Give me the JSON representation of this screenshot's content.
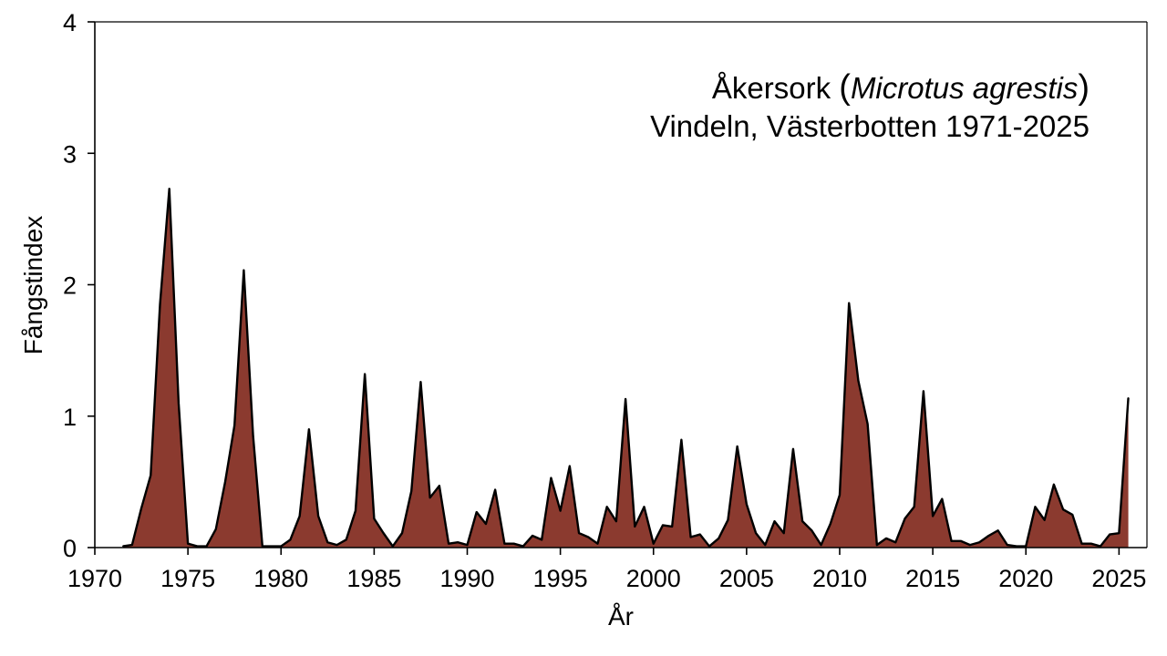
{
  "chart_data": {
    "type": "area",
    "title": "Åkersork (Microtus agrestis)",
    "title_parts": {
      "prefix": "Åkersork ",
      "open_paren": "(",
      "species": "Microtus agrestis",
      "close_paren": ")"
    },
    "subtitle": "Vindeln, Västerbotten 1971-2025",
    "xlabel": "År",
    "ylabel": "Fångstindex",
    "xlim": [
      1970,
      2026.5
    ],
    "ylim": [
      0,
      4
    ],
    "xticks": [
      1970,
      1975,
      1980,
      1985,
      1990,
      1995,
      2000,
      2005,
      2010,
      2015,
      2020,
      2025
    ],
    "yticks": [
      0,
      1,
      2,
      3,
      4
    ],
    "grid": false,
    "fill_color": "#8b3a2f",
    "line_color": "#000000",
    "series": [
      {
        "x": [
          1971.5,
          1972.0,
          1972.5,
          1973.0,
          1973.5,
          1974.0,
          1974.5,
          1975.0,
          1975.5,
          1976.0,
          1976.5,
          1977.0,
          1977.5,
          1978.0,
          1978.5,
          1979.0,
          1979.5,
          1980.0,
          1980.5,
          1981.0,
          1981.5,
          1982.0,
          1982.5,
          1983.0,
          1983.5,
          1984.0,
          1984.5,
          1985.0,
          1985.5,
          1986.0,
          1986.5,
          1987.0,
          1987.5,
          1988.0,
          1988.5,
          1989.0,
          1989.5,
          1990.0,
          1990.5,
          1991.0,
          1991.5,
          1992.0,
          1992.5,
          1993.0,
          1993.5,
          1994.0,
          1994.5,
          1995.0,
          1995.5,
          1996.0,
          1996.5,
          1997.0,
          1997.5,
          1998.0,
          1998.5,
          1999.0,
          1999.5,
          2000.0,
          2000.5,
          2001.0,
          2001.5,
          2002.0,
          2002.5,
          2003.0,
          2003.5,
          2004.0,
          2004.5,
          2005.0,
          2005.5,
          2006.0,
          2006.5,
          2007.0,
          2007.5,
          2008.0,
          2008.5,
          2009.0,
          2009.5,
          2010.0,
          2010.5,
          2011.0,
          2011.5,
          2012.0,
          2012.5,
          2013.0,
          2013.5,
          2014.0,
          2014.5,
          2015.0,
          2015.5,
          2016.0,
          2016.5,
          2017.0,
          2017.5,
          2018.0,
          2018.5,
          2019.0,
          2019.5,
          2020.0,
          2020.5,
          2021.0,
          2021.5,
          2022.0,
          2022.5,
          2023.0,
          2023.5,
          2024.0,
          2024.5,
          2025.0,
          2025.5
        ],
        "values": [
          0.01,
          0.02,
          0.3,
          0.55,
          1.85,
          2.73,
          1.1,
          0.03,
          0.01,
          0.01,
          0.14,
          0.5,
          0.93,
          2.11,
          0.85,
          0.01,
          0.01,
          0.01,
          0.06,
          0.24,
          0.9,
          0.24,
          0.04,
          0.02,
          0.06,
          0.28,
          1.32,
          0.22,
          0.11,
          0.01,
          0.11,
          0.43,
          1.26,
          0.38,
          0.47,
          0.03,
          0.04,
          0.02,
          0.27,
          0.18,
          0.44,
          0.03,
          0.03,
          0.01,
          0.09,
          0.06,
          0.53,
          0.28,
          0.62,
          0.11,
          0.08,
          0.03,
          0.31,
          0.2,
          1.13,
          0.16,
          0.31,
          0.03,
          0.17,
          0.16,
          0.82,
          0.08,
          0.1,
          0.01,
          0.07,
          0.21,
          0.77,
          0.33,
          0.11,
          0.02,
          0.2,
          0.11,
          0.75,
          0.2,
          0.13,
          0.02,
          0.18,
          0.4,
          1.86,
          1.27,
          0.94,
          0.02,
          0.07,
          0.04,
          0.22,
          0.31,
          1.19,
          0.24,
          0.37,
          0.05,
          0.05,
          0.02,
          0.04,
          0.09,
          0.13,
          0.02,
          0.01,
          0.01,
          0.31,
          0.21,
          0.48,
          0.29,
          0.25,
          0.03,
          0.03,
          0.01,
          0.1,
          0.11,
          1.14
        ]
      }
    ]
  }
}
